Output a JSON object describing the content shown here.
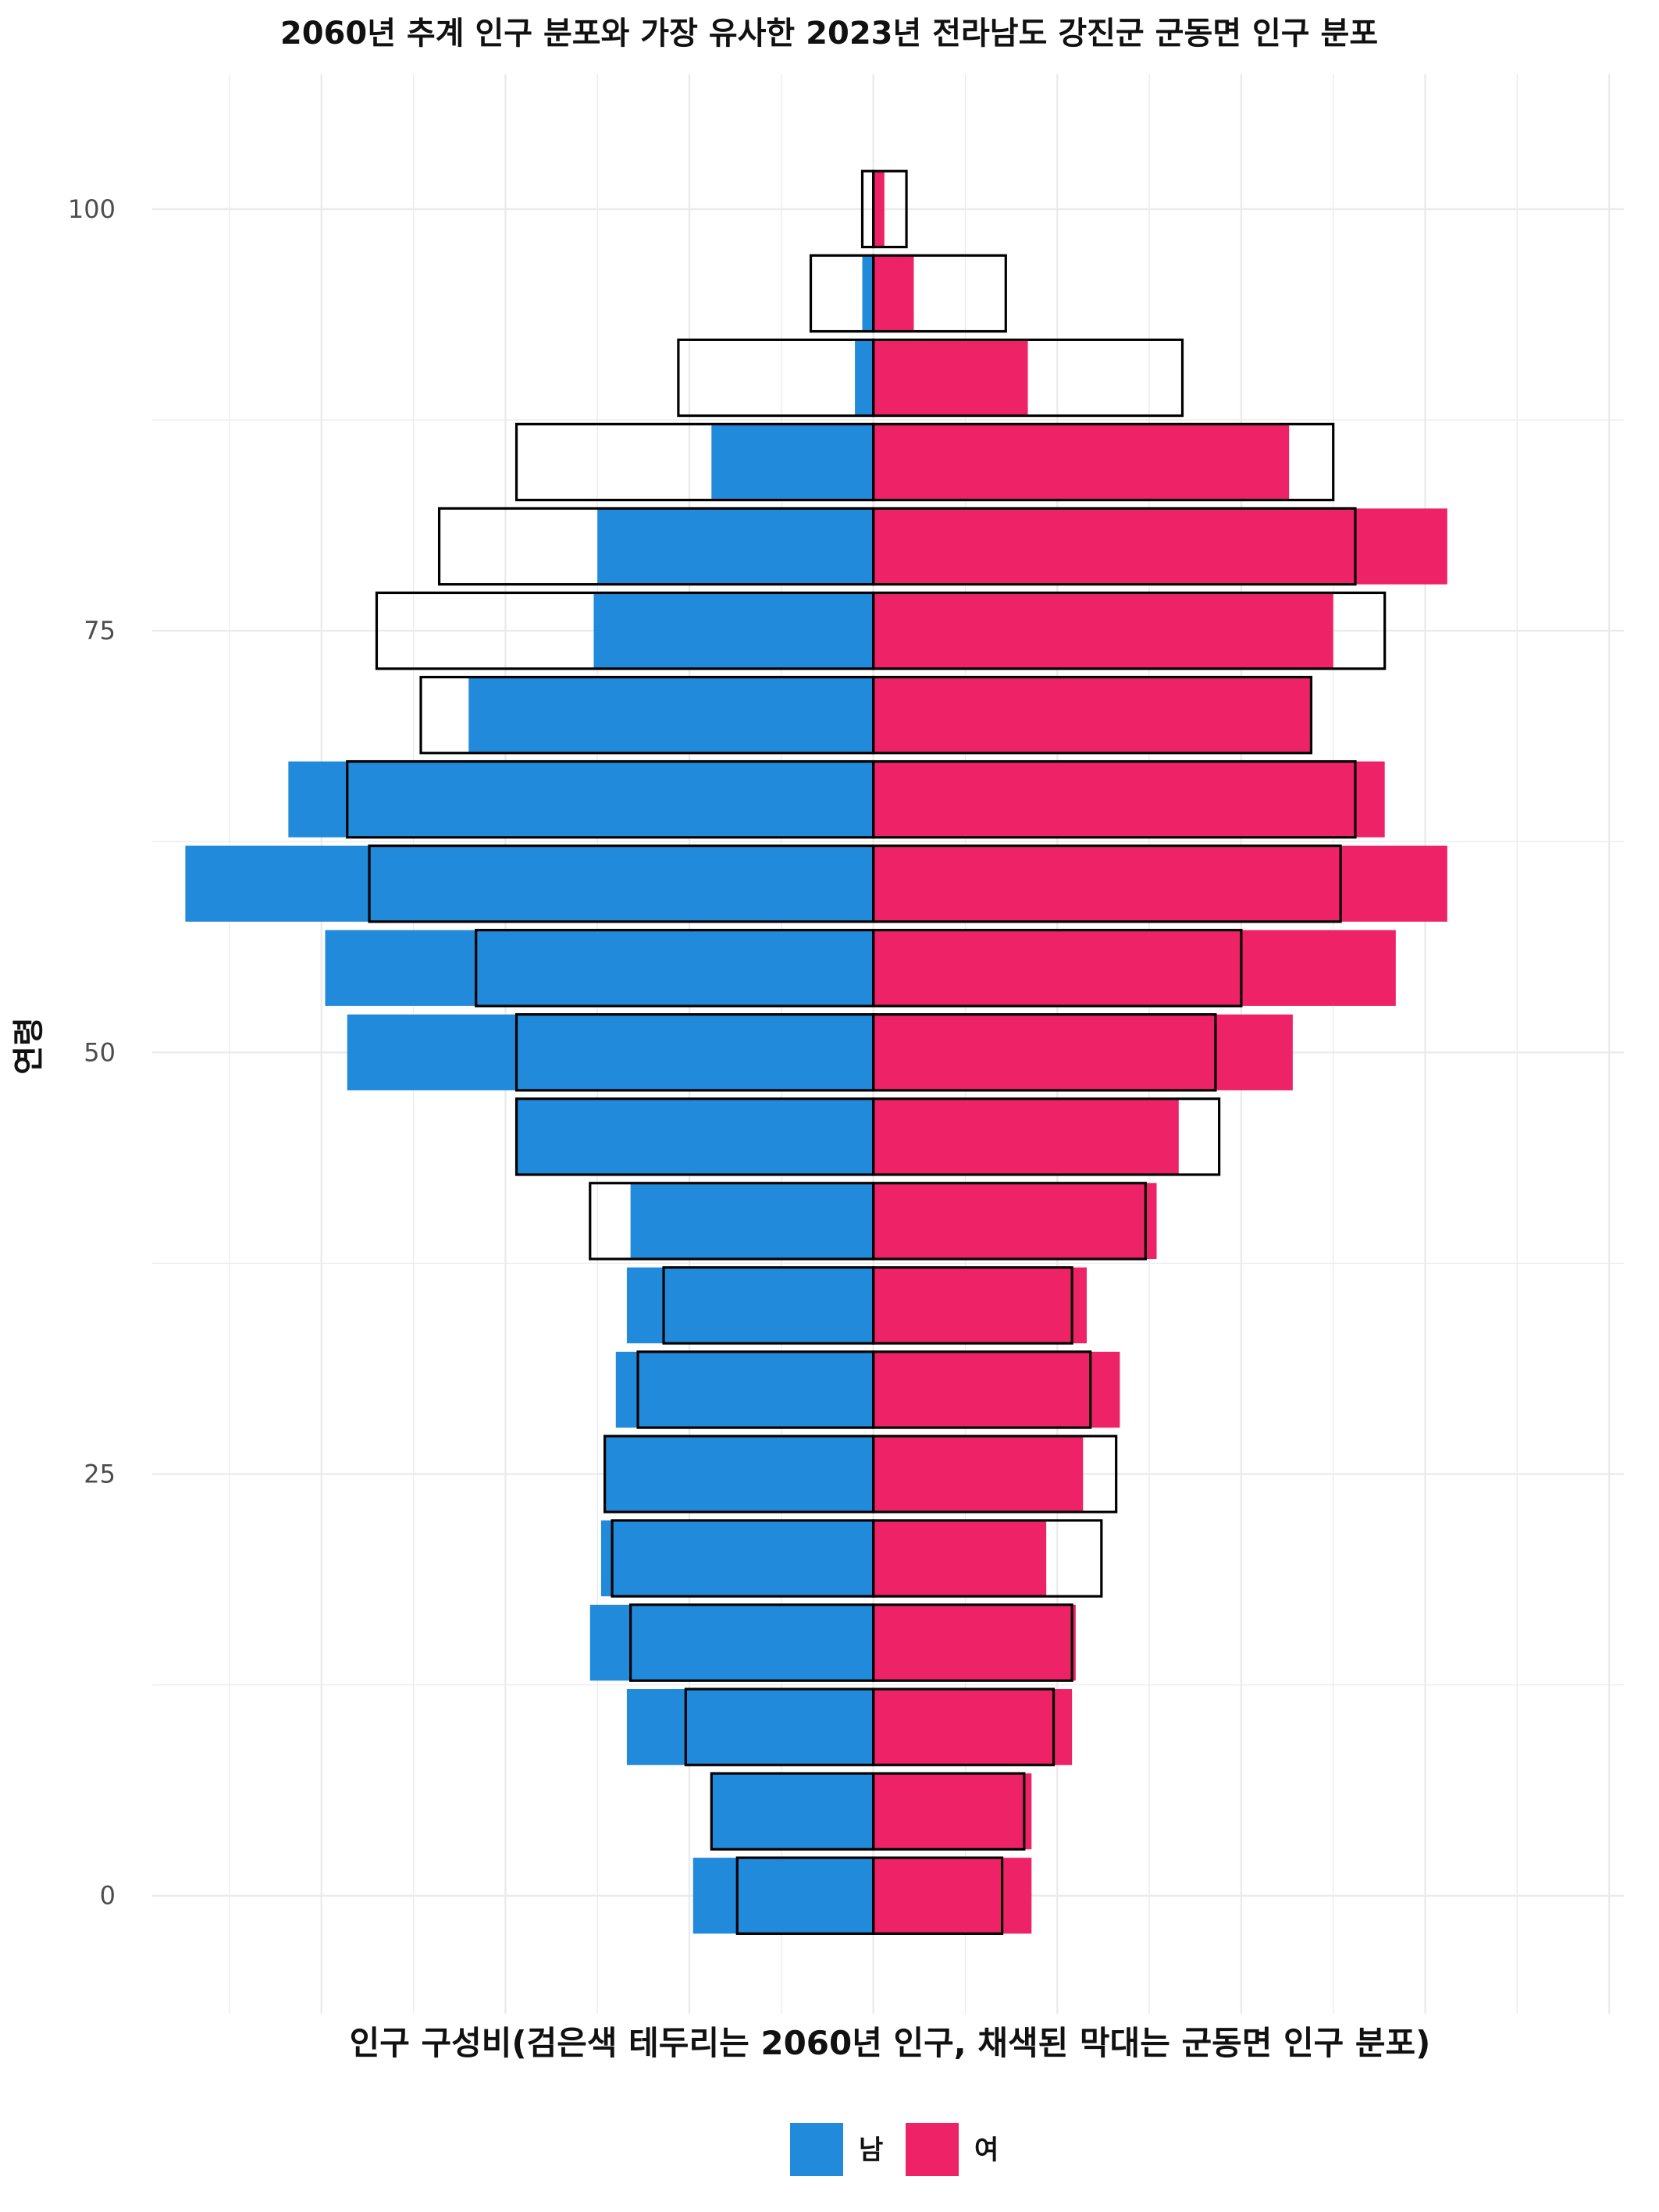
{
  "chart_data": {
    "type": "bar",
    "title": "2060년 추계 인구 분포와 가장 유사한 2023년 전라남도 강진군 군동면 인구 분포",
    "xlabel": "인구 구성비(검은색 테두리는 2060년 인구, 채색된 막대는 군동면 인구 분포)",
    "ylabel": "연령",
    "y_ticks": [
      "0",
      "25",
      "50",
      "75",
      "100"
    ],
    "ylim": [
      -7,
      108
    ],
    "xlim": [
      -1.96,
      2.04
    ],
    "grid": true,
    "legend_position": "bottom",
    "age_groups": [
      0,
      5,
      10,
      15,
      20,
      25,
      30,
      35,
      40,
      45,
      50,
      55,
      60,
      65,
      70,
      75,
      80,
      85,
      90,
      95,
      100
    ],
    "series": [
      {
        "name": "남",
        "color": "#228ADB",
        "values": [
          -0.49,
          -0.44,
          -0.67,
          -0.77,
          -0.74,
          -0.73,
          -0.7,
          -0.67,
          -0.66,
          -0.97,
          -1.43,
          -1.49,
          -1.87,
          -1.59,
          -1.1,
          -0.76,
          -0.75,
          -0.44,
          -0.05,
          -0.03,
          0.0
        ]
      },
      {
        "name": "여",
        "color": "#EE2266",
        "values": [
          0.43,
          0.43,
          0.54,
          0.55,
          0.47,
          0.57,
          0.67,
          0.58,
          0.77,
          0.83,
          1.14,
          1.42,
          1.56,
          1.39,
          1.19,
          1.25,
          1.56,
          1.13,
          0.42,
          0.11,
          0.03
        ]
      }
    ],
    "outline_2060": {
      "name": "2060년 인구",
      "male": [
        -0.37,
        -0.44,
        -0.51,
        -0.66,
        -0.71,
        -0.73,
        -0.64,
        -0.57,
        -0.77,
        -0.97,
        -0.97,
        -1.08,
        -1.37,
        -1.43,
        -1.23,
        -1.35,
        -1.18,
        -0.97,
        -0.53,
        -0.17,
        -0.03
      ],
      "female": [
        0.35,
        0.41,
        0.49,
        0.54,
        0.62,
        0.66,
        0.59,
        0.54,
        0.74,
        0.94,
        0.93,
        1.0,
        1.27,
        1.31,
        1.19,
        1.39,
        1.31,
        1.25,
        0.84,
        0.36,
        0.09
      ]
    }
  }
}
